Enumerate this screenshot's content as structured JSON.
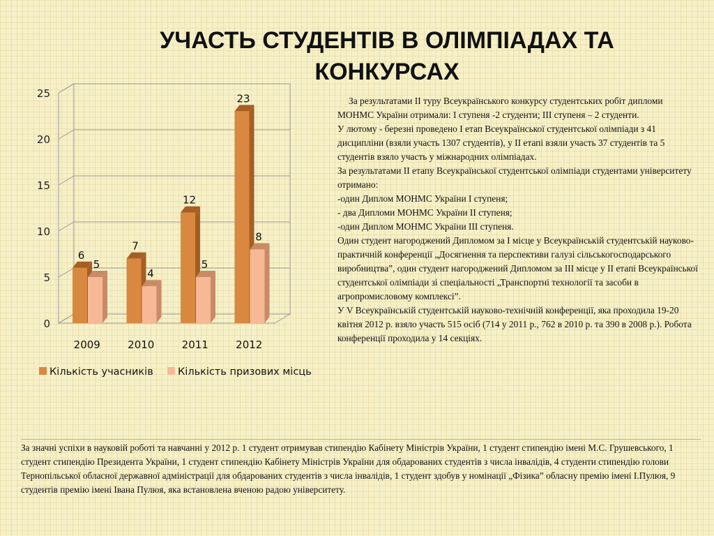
{
  "title": "УЧАСТЬ СТУДЕНТІВ В ОЛІМПІАДАХ ТА КОНКУРСАХ",
  "colors": {
    "participants": "#d9893f",
    "participants_dark": "#a65e22",
    "prizes": "#f7b995",
    "prizes_dark": "#c98a66"
  },
  "chart_data": {
    "type": "bar",
    "categories": [
      "2009",
      "2010",
      "2011",
      "2012"
    ],
    "series": [
      {
        "name": "Кількість учасників",
        "values": [
          6,
          7,
          12,
          23
        ]
      },
      {
        "name": "Кількість призових місць",
        "values": [
          5,
          4,
          5,
          8
        ]
      }
    ],
    "ylim": [
      0,
      25
    ],
    "yticks": [
      0,
      5,
      10,
      15,
      20,
      25
    ],
    "grid": true,
    "legend_position": "bottom",
    "data_labels": true
  },
  "side_text": [
    "За результатами ІІ туру Всеукраїнського конкурсу студентських робіт дипломи МОНМС України отримали: І ступеня -2 студенти; ІІІ ступеня – 2 студенти.",
    "У лютому - березні проведено І етап Всеукраїнської студентської олімпіади з 41 дисципліни (взяли участь 1307 студентів), у ІІ етапі взяли участь 37 студентів та 5 студентів взяло участь у міжнародних олімпіадах.",
    "За результатами ІІ етапу Всеукраїнської студентської олімпіади студентами університету отримано:",
    "-один Диплом МОНМС України І ступеня;",
    "- два Дипломи МОНМС України ІІ ступеня;",
    "-один Диплом МОНМС України ІІІ ступеня.",
    "Один студент нагороджений Дипломом за І місце у Всеукраїнській студентській науково-практичній конференції „Досягнення та перспективи галузі сільськогосподарського виробництва”, один студент нагороджений Дипломом за ІІІ місце у ІІ етапі Всеукраїнської студентської олімпіади зі спеціальності „Транспортні технології та засоби в агропромисловому комплексі”.",
    "У V Всеукраїнській студентській науково-технічній конференції, яка проходила 19-20 квітня 2012 р. взяло участь 515 осіб (714 у 2011 р., 762 в 2010 р. та 390 в 2008 р.). Робота конференції проходила у 14 секціях."
  ],
  "bottom_text": "За значні успіхи в науковій роботі та навчанні у 2012 р. 1 студент отримував стипендію Кабінету Міністрів України, 1 студент стипендію імені М.С. Грушевського, 1 студент стипендію Президента України, 1 студент стипендію Кабінету Міністрів України для обдарованих студентів з числа інвалідів, 4 студенти стипендію голови Тернопільської обласної державної адміністрації для обдарованих студентів з числа інвалідів, 1 студент здобув у номінації „Фізика” обласну премію імені І.Пулюя, 9 студентів премію імені Івана Пулюя, яка встановлена вченою радою університету."
}
